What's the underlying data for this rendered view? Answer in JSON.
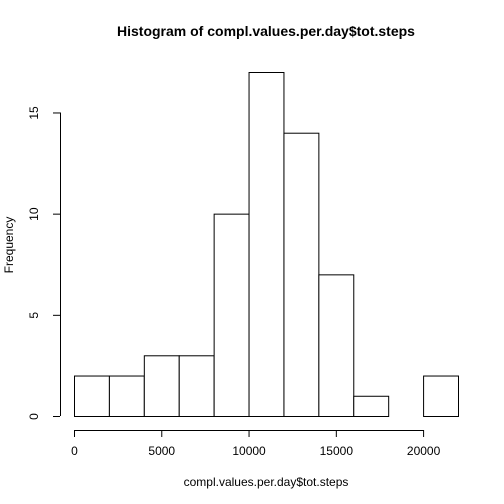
{
  "chart_data": {
    "type": "bar",
    "title": "Histogram of compl.values.per.day$tot.steps",
    "xlabel": "compl.values.per.day$tot.steps",
    "ylabel": "Frequency",
    "bins": [
      {
        "start": 0,
        "end": 2000,
        "count": 2
      },
      {
        "start": 2000,
        "end": 4000,
        "count": 2
      },
      {
        "start": 4000,
        "end": 6000,
        "count": 3
      },
      {
        "start": 6000,
        "end": 8000,
        "count": 3
      },
      {
        "start": 8000,
        "end": 10000,
        "count": 10
      },
      {
        "start": 10000,
        "end": 12000,
        "count": 17
      },
      {
        "start": 12000,
        "end": 14000,
        "count": 14
      },
      {
        "start": 14000,
        "end": 16000,
        "count": 7
      },
      {
        "start": 16000,
        "end": 18000,
        "count": 1
      },
      {
        "start": 18000,
        "end": 20000,
        "count": 0
      },
      {
        "start": 20000,
        "end": 22000,
        "count": 2
      }
    ],
    "xlim": [
      0,
      22000
    ],
    "ylim": [
      0,
      17
    ],
    "xticks": [
      0,
      5000,
      10000,
      15000,
      20000
    ],
    "xtick_labels": [
      "0",
      "5000",
      "10000",
      "15000",
      "20000"
    ],
    "yticks": [
      0,
      5,
      10,
      15
    ],
    "ytick_labels": [
      "0",
      "5",
      "10",
      "15"
    ],
    "grid": false
  }
}
